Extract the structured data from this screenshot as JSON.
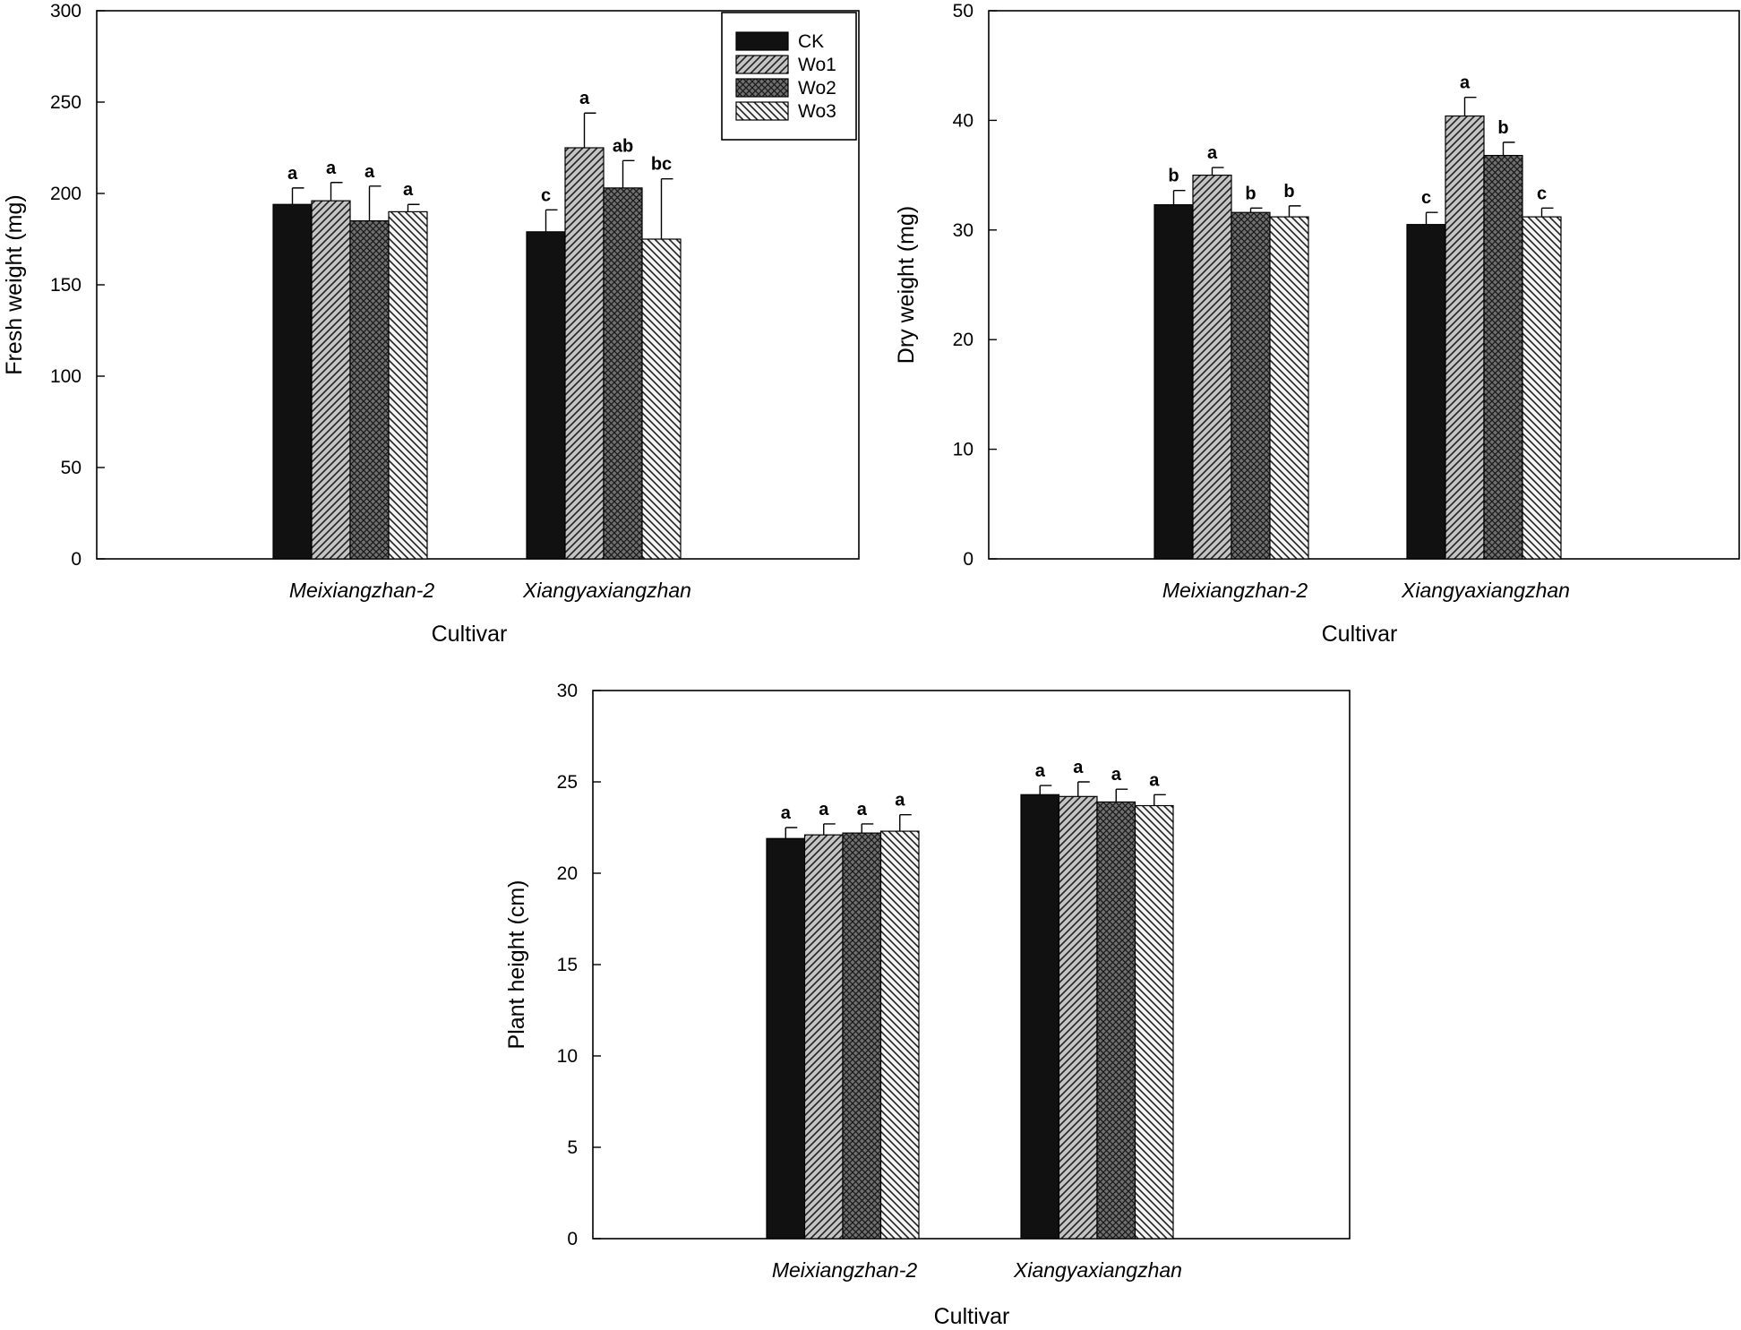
{
  "colors": {
    "ck": "#111111",
    "axis": "#000000",
    "background": "#ffffff"
  },
  "legend": [
    {
      "key": "CK",
      "label": "CK",
      "pattern": "solid"
    },
    {
      "key": "Wo1",
      "label": "Wo1",
      "pattern": "diag-right-light"
    },
    {
      "key": "Wo2",
      "label": "Wo2",
      "pattern": "crosshatch-dark"
    },
    {
      "key": "Wo3",
      "label": "Wo3",
      "pattern": "diag-left-white"
    }
  ],
  "chart_data": [
    {
      "id": "fresh",
      "type": "bar",
      "title": "",
      "xlabel": "Cultivar",
      "ylabel": "Fresh weight (mg)",
      "ylim": [
        0,
        300
      ],
      "yticks": [
        0,
        50,
        100,
        150,
        200,
        250,
        300
      ],
      "categories": [
        "Meixiangzhan-2",
        "Xiangyaxiangzhan"
      ],
      "legend_position": "top-right",
      "series": [
        {
          "name": "CK",
          "values": [
            194,
            179
          ],
          "errors": [
            9,
            12
          ],
          "labels": [
            "a",
            "c"
          ]
        },
        {
          "name": "Wo1",
          "values": [
            196,
            225
          ],
          "errors": [
            10,
            19
          ],
          "labels": [
            "a",
            "a"
          ]
        },
        {
          "name": "Wo2",
          "values": [
            185,
            203
          ],
          "errors": [
            19,
            15
          ],
          "labels": [
            "a",
            "ab"
          ]
        },
        {
          "name": "Wo3",
          "values": [
            190,
            175
          ],
          "errors": [
            4,
            33
          ],
          "labels": [
            "a",
            "bc"
          ]
        }
      ]
    },
    {
      "id": "dry",
      "type": "bar",
      "title": "",
      "xlabel": "Cultivar",
      "ylabel": "Dry weight (mg)",
      "ylim": [
        0,
        50
      ],
      "yticks": [
        0,
        10,
        20,
        30,
        40,
        50
      ],
      "categories": [
        "Meixiangzhan-2",
        "Xiangyaxiangzhan"
      ],
      "series": [
        {
          "name": "CK",
          "values": [
            32.3,
            30.5
          ],
          "errors": [
            1.3,
            1.1
          ],
          "labels": [
            "b",
            "c"
          ]
        },
        {
          "name": "Wo1",
          "values": [
            35.0,
            40.4
          ],
          "errors": [
            0.7,
            1.7
          ],
          "labels": [
            "a",
            "a"
          ]
        },
        {
          "name": "Wo2",
          "values": [
            31.6,
            36.8
          ],
          "errors": [
            0.4,
            1.2
          ],
          "labels": [
            "b",
            "b"
          ]
        },
        {
          "name": "Wo3",
          "values": [
            31.2,
            31.2
          ],
          "errors": [
            1.0,
            0.8
          ],
          "labels": [
            "b",
            "c"
          ]
        }
      ]
    },
    {
      "id": "height",
      "type": "bar",
      "title": "",
      "xlabel": "Cultivar",
      "ylabel": "Plant height (cm)",
      "ylim": [
        0,
        30
      ],
      "yticks": [
        0,
        5,
        10,
        15,
        20,
        25,
        30
      ],
      "categories": [
        "Meixiangzhan-2",
        "Xiangyaxiangzhan"
      ],
      "series": [
        {
          "name": "CK",
          "values": [
            21.9,
            24.3
          ],
          "errors": [
            0.6,
            0.5
          ],
          "labels": [
            "a",
            "a"
          ]
        },
        {
          "name": "Wo1",
          "values": [
            22.1,
            24.2
          ],
          "errors": [
            0.6,
            0.8
          ],
          "labels": [
            "a",
            "a"
          ]
        },
        {
          "name": "Wo2",
          "values": [
            22.2,
            23.9
          ],
          "errors": [
            0.5,
            0.7
          ],
          "labels": [
            "a",
            "a"
          ]
        },
        {
          "name": "Wo3",
          "values": [
            22.3,
            23.7
          ],
          "errors": [
            0.9,
            0.6
          ],
          "labels": [
            "a",
            "a"
          ]
        }
      ]
    }
  ]
}
